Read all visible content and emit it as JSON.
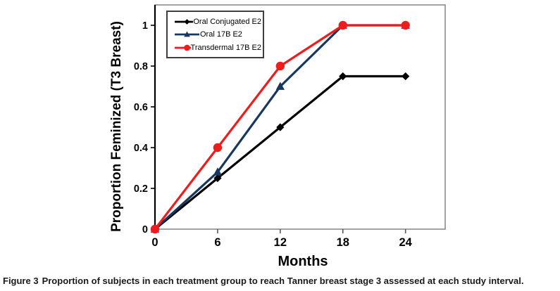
{
  "figure": {
    "caption_label": "Figure 3",
    "caption_text": "Proportion of subjects in each treatment group to reach Tanner breast stage 3 assessed at each study interval."
  },
  "chart_data": {
    "type": "line",
    "title": "",
    "xlabel": "Months",
    "ylabel": "Proportion Feminized (T3 Breast)",
    "x": [
      0,
      6,
      12,
      18,
      24
    ],
    "series": [
      {
        "name": "Oral Conjugated E2",
        "marker": "diamond",
        "color": "#000000",
        "values": [
          0,
          0.25,
          0.5,
          0.75,
          0.75
        ]
      },
      {
        "name": "Oral 17B E2",
        "marker": "triangle",
        "color": "#17375E",
        "values": [
          0,
          0.28,
          0.7,
          1.0,
          1.0
        ]
      },
      {
        "name": "Transdermal 17B E2",
        "marker": "circle",
        "color": "#EE1C1C",
        "values": [
          0,
          0.4,
          0.8,
          1.0,
          1.0
        ]
      }
    ],
    "xticks": [
      0,
      6,
      12,
      18,
      24
    ],
    "yticks": [
      0,
      0.2,
      0.4,
      0.6,
      0.8,
      1
    ],
    "xlim": [
      0,
      27.8
    ],
    "ylim": [
      0,
      1.1
    ],
    "grid": false,
    "legend_position": "top-left-inside",
    "axis_color": "#8c8c8c",
    "y_axis_line_color": "#000000"
  }
}
